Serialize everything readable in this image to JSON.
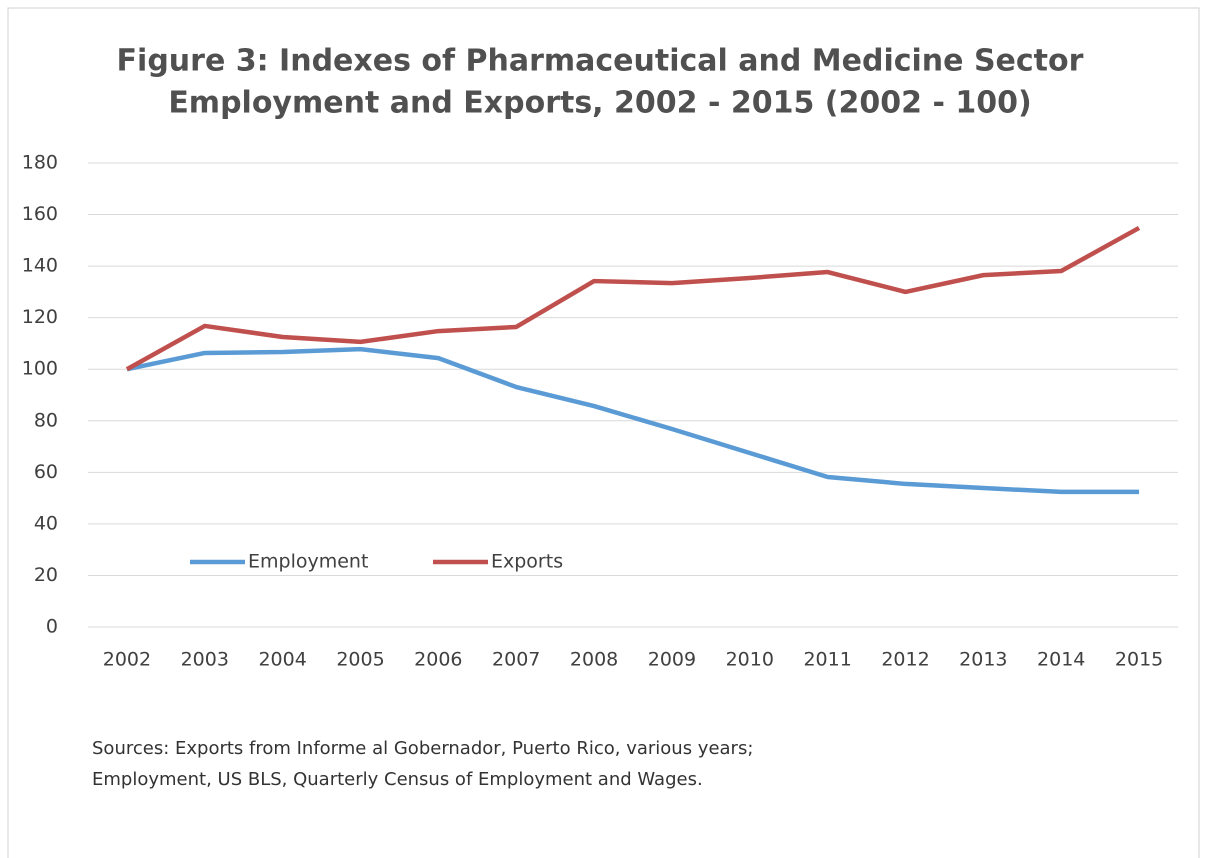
{
  "chart_data": {
    "type": "line",
    "title": [
      "Figure 3: Indexes of Pharmaceutical and Medicine Sector",
      "Employment and Exports, 2002 - 2015 (2002 - 100)"
    ],
    "categories": [
      "2002",
      "2003",
      "2004",
      "2005",
      "2006",
      "2007",
      "2008",
      "2009",
      "2010",
      "2011",
      "2012",
      "2013",
      "2014",
      "2015"
    ],
    "series": [
      {
        "name": "Employment",
        "color": "#5b9bd5",
        "values": [
          100,
          106.3,
          106.7,
          107.8,
          104.3,
          93.1,
          85.7,
          76.8,
          67.5,
          58.2,
          55.5,
          53.9,
          52.4,
          52.4
        ]
      },
      {
        "name": "Exports",
        "color": "#c0504d",
        "values": [
          100,
          116.8,
          112.5,
          110.6,
          114.8,
          116.4,
          134.2,
          133.4,
          135.4,
          137.7,
          130,
          136.5,
          138.1,
          154.8
        ]
      }
    ],
    "ylim": [
      0,
      180
    ],
    "yticks": [
      0,
      20,
      40,
      60,
      80,
      100,
      120,
      140,
      160,
      180
    ],
    "grid": true,
    "note": [
      "Sources: Exports from Informe al Gobernador, Puerto Rico, various years;",
      "Employment, US BLS, Quarterly Census of Employment and Wages."
    ]
  }
}
